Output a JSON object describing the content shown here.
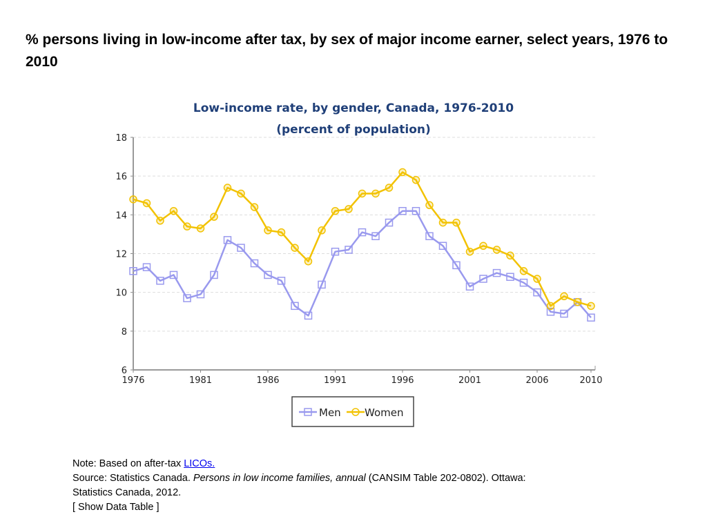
{
  "slide_title": "% persons living in low-income after tax, by sex of major income earner, select years, 1976 to 2010",
  "chart_data": {
    "type": "line",
    "title": "Low-income rate, by gender, Canada, 1976-2010",
    "subtitle": "(percent of population)",
    "xlabel": "",
    "ylabel": "",
    "xlim": [
      1976,
      2010
    ],
    "ylim": [
      6,
      18
    ],
    "x_ticks": [
      1976,
      1981,
      1986,
      1991,
      1996,
      2001,
      2006,
      2010
    ],
    "y_ticks": [
      6,
      8,
      10,
      12,
      14,
      16,
      18
    ],
    "grid": "horizontal dashed",
    "legend_position": "bottom",
    "x": [
      1976,
      1977,
      1978,
      1979,
      1980,
      1981,
      1982,
      1983,
      1984,
      1985,
      1986,
      1987,
      1988,
      1989,
      1990,
      1991,
      1992,
      1993,
      1994,
      1995,
      1996,
      1997,
      1998,
      1999,
      2000,
      2001,
      2002,
      2003,
      2004,
      2005,
      2006,
      2007,
      2008,
      2009,
      2010
    ],
    "series": [
      {
        "name": "Men",
        "color": "#9999ee",
        "marker": "square",
        "values": [
          11.1,
          11.3,
          10.6,
          10.9,
          9.7,
          9.9,
          10.9,
          12.7,
          12.3,
          11.5,
          10.9,
          10.6,
          9.3,
          8.8,
          10.4,
          12.1,
          12.2,
          13.1,
          12.9,
          13.6,
          14.2,
          14.2,
          12.9,
          12.4,
          11.4,
          10.3,
          10.7,
          11.0,
          10.8,
          10.5,
          10.0,
          9.0,
          8.9,
          9.5,
          8.7
        ]
      },
      {
        "name": "Women",
        "color": "#f2c200",
        "marker": "circle",
        "values": [
          14.8,
          14.6,
          13.7,
          14.2,
          13.4,
          13.3,
          13.9,
          15.4,
          15.1,
          14.4,
          13.2,
          13.1,
          12.3,
          11.6,
          13.2,
          14.2,
          14.3,
          15.1,
          15.1,
          15.4,
          16.2,
          15.8,
          14.5,
          13.6,
          13.6,
          12.1,
          12.4,
          12.2,
          11.9,
          11.1,
          10.7,
          9.3,
          9.8,
          9.5,
          9.3
        ]
      }
    ],
    "title_color": "#1f3f78"
  },
  "notes": {
    "note_prefix": "Note: Based on after-tax ",
    "note_link": "LICOs.",
    "source_prefix": "Source: Statistics Canada. ",
    "source_italic": "Persons in low income families, annual",
    "source_suffix": " (CANSIM Table 202-0802). Ottawa:",
    "source_line2": "Statistics Canada, 2012.",
    "show_table": "[ Show Data Table ]"
  }
}
